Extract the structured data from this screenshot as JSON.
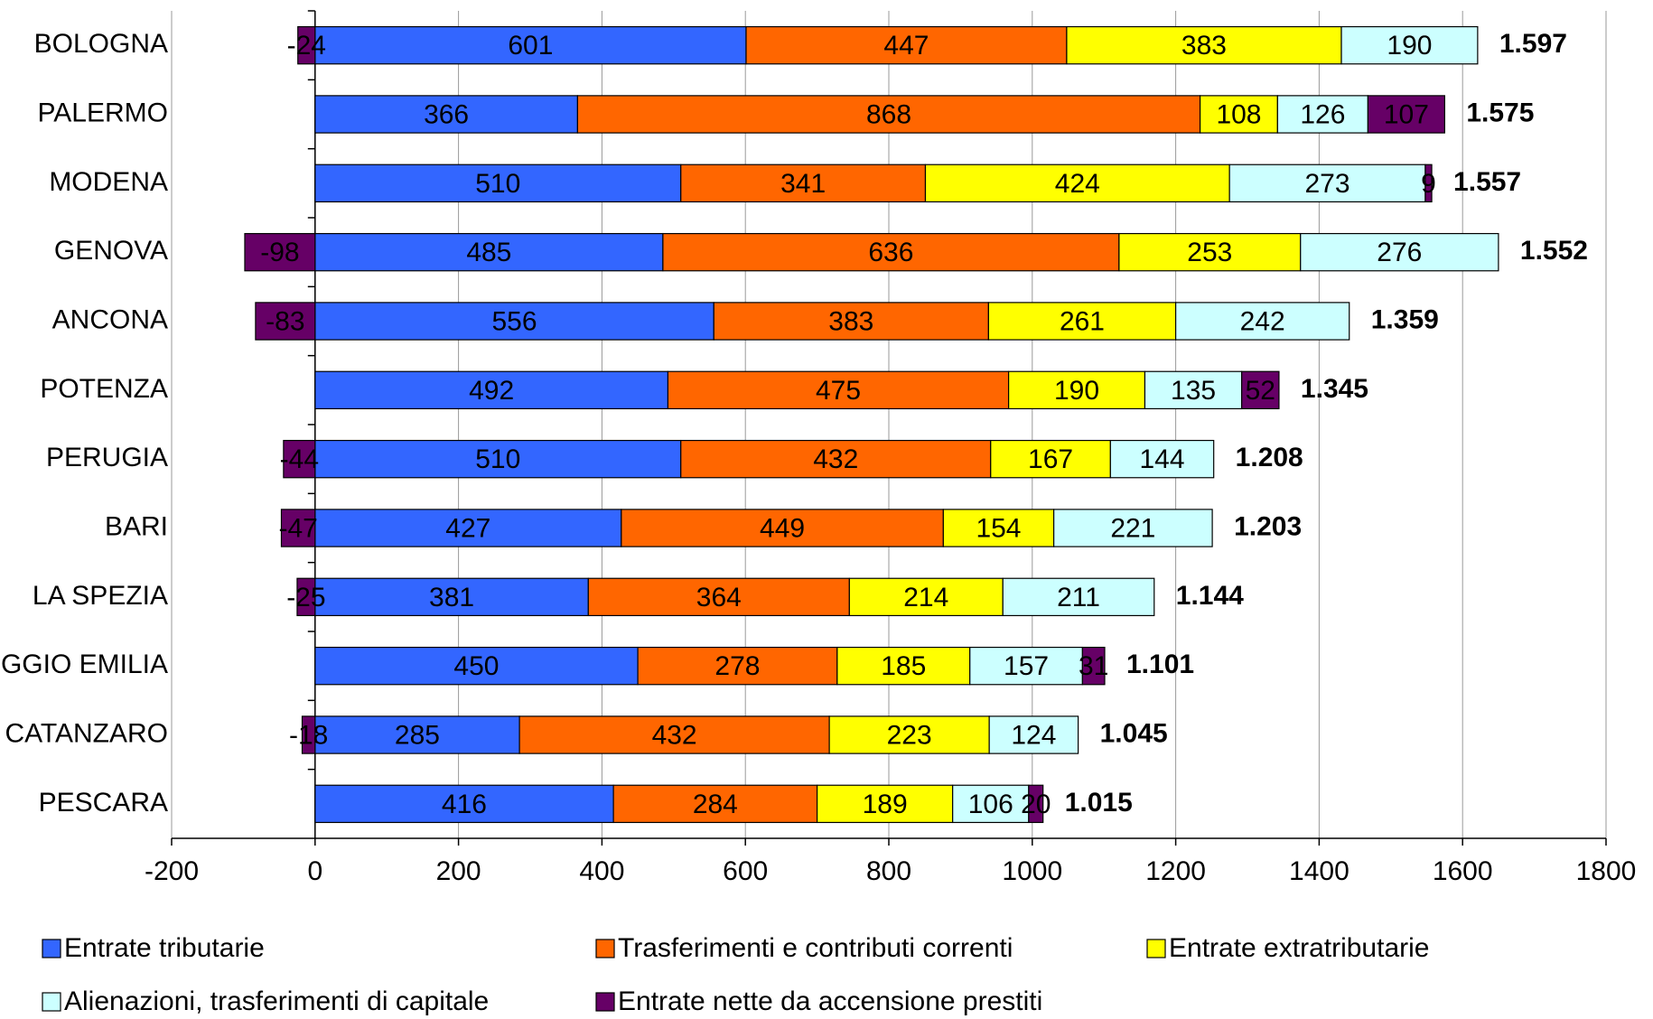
{
  "chart_data": {
    "type": "stacked-barh",
    "categories": [
      "BOLOGNA",
      "PALERMO",
      "MODENA",
      "GENOVA",
      "ANCONA",
      "POTENZA",
      "PERUGIA",
      "BARI",
      "LA SPEZIA",
      "REGGIO EMILIA",
      "CATANZARO",
      "PESCARA"
    ],
    "series": [
      {
        "name": "Entrate tributarie",
        "color": "#3366ff",
        "values": [
          601,
          366,
          510,
          485,
          556,
          492,
          510,
          427,
          381,
          450,
          285,
          416
        ]
      },
      {
        "name": "Trasferimenti e contributi correnti",
        "color": "#ff6600",
        "values": [
          447,
          868,
          341,
          636,
          383,
          475,
          432,
          449,
          364,
          278,
          432,
          284
        ]
      },
      {
        "name": "Entrate extratributarie",
        "color": "#ffff00",
        "values": [
          383,
          108,
          424,
          253,
          261,
          190,
          167,
          154,
          214,
          185,
          223,
          189
        ]
      },
      {
        "name": "Alienazioni, trasferimenti di capitale",
        "color": "#ccffff",
        "values": [
          190,
          126,
          273,
          276,
          242,
          135,
          144,
          221,
          211,
          157,
          124,
          106
        ]
      },
      {
        "name": "Entrate nette da accensione prestiti",
        "color": "#660066",
        "values": [
          -24,
          107,
          9,
          -98,
          -83,
          52,
          -44,
          -47,
          -25,
          31,
          -18,
          20
        ]
      }
    ],
    "totals": {
      "values": [
        1597,
        1575,
        1557,
        1552,
        1359,
        1345,
        1208,
        1203,
        1144,
        1101,
        1045,
        1015
      ],
      "value_labels": [
        "1.597",
        "1.575",
        "1.557",
        "1.552",
        "1.359",
        "1.345",
        "1.208",
        "1.203",
        "1.144",
        "1.101",
        "1.045",
        "1.015"
      ]
    },
    "xlim": [
      -200,
      1800
    ],
    "xticks": [
      -200,
      0,
      200,
      400,
      600,
      800,
      1000,
      1200,
      1400,
      1600,
      1800
    ],
    "grid": true
  }
}
